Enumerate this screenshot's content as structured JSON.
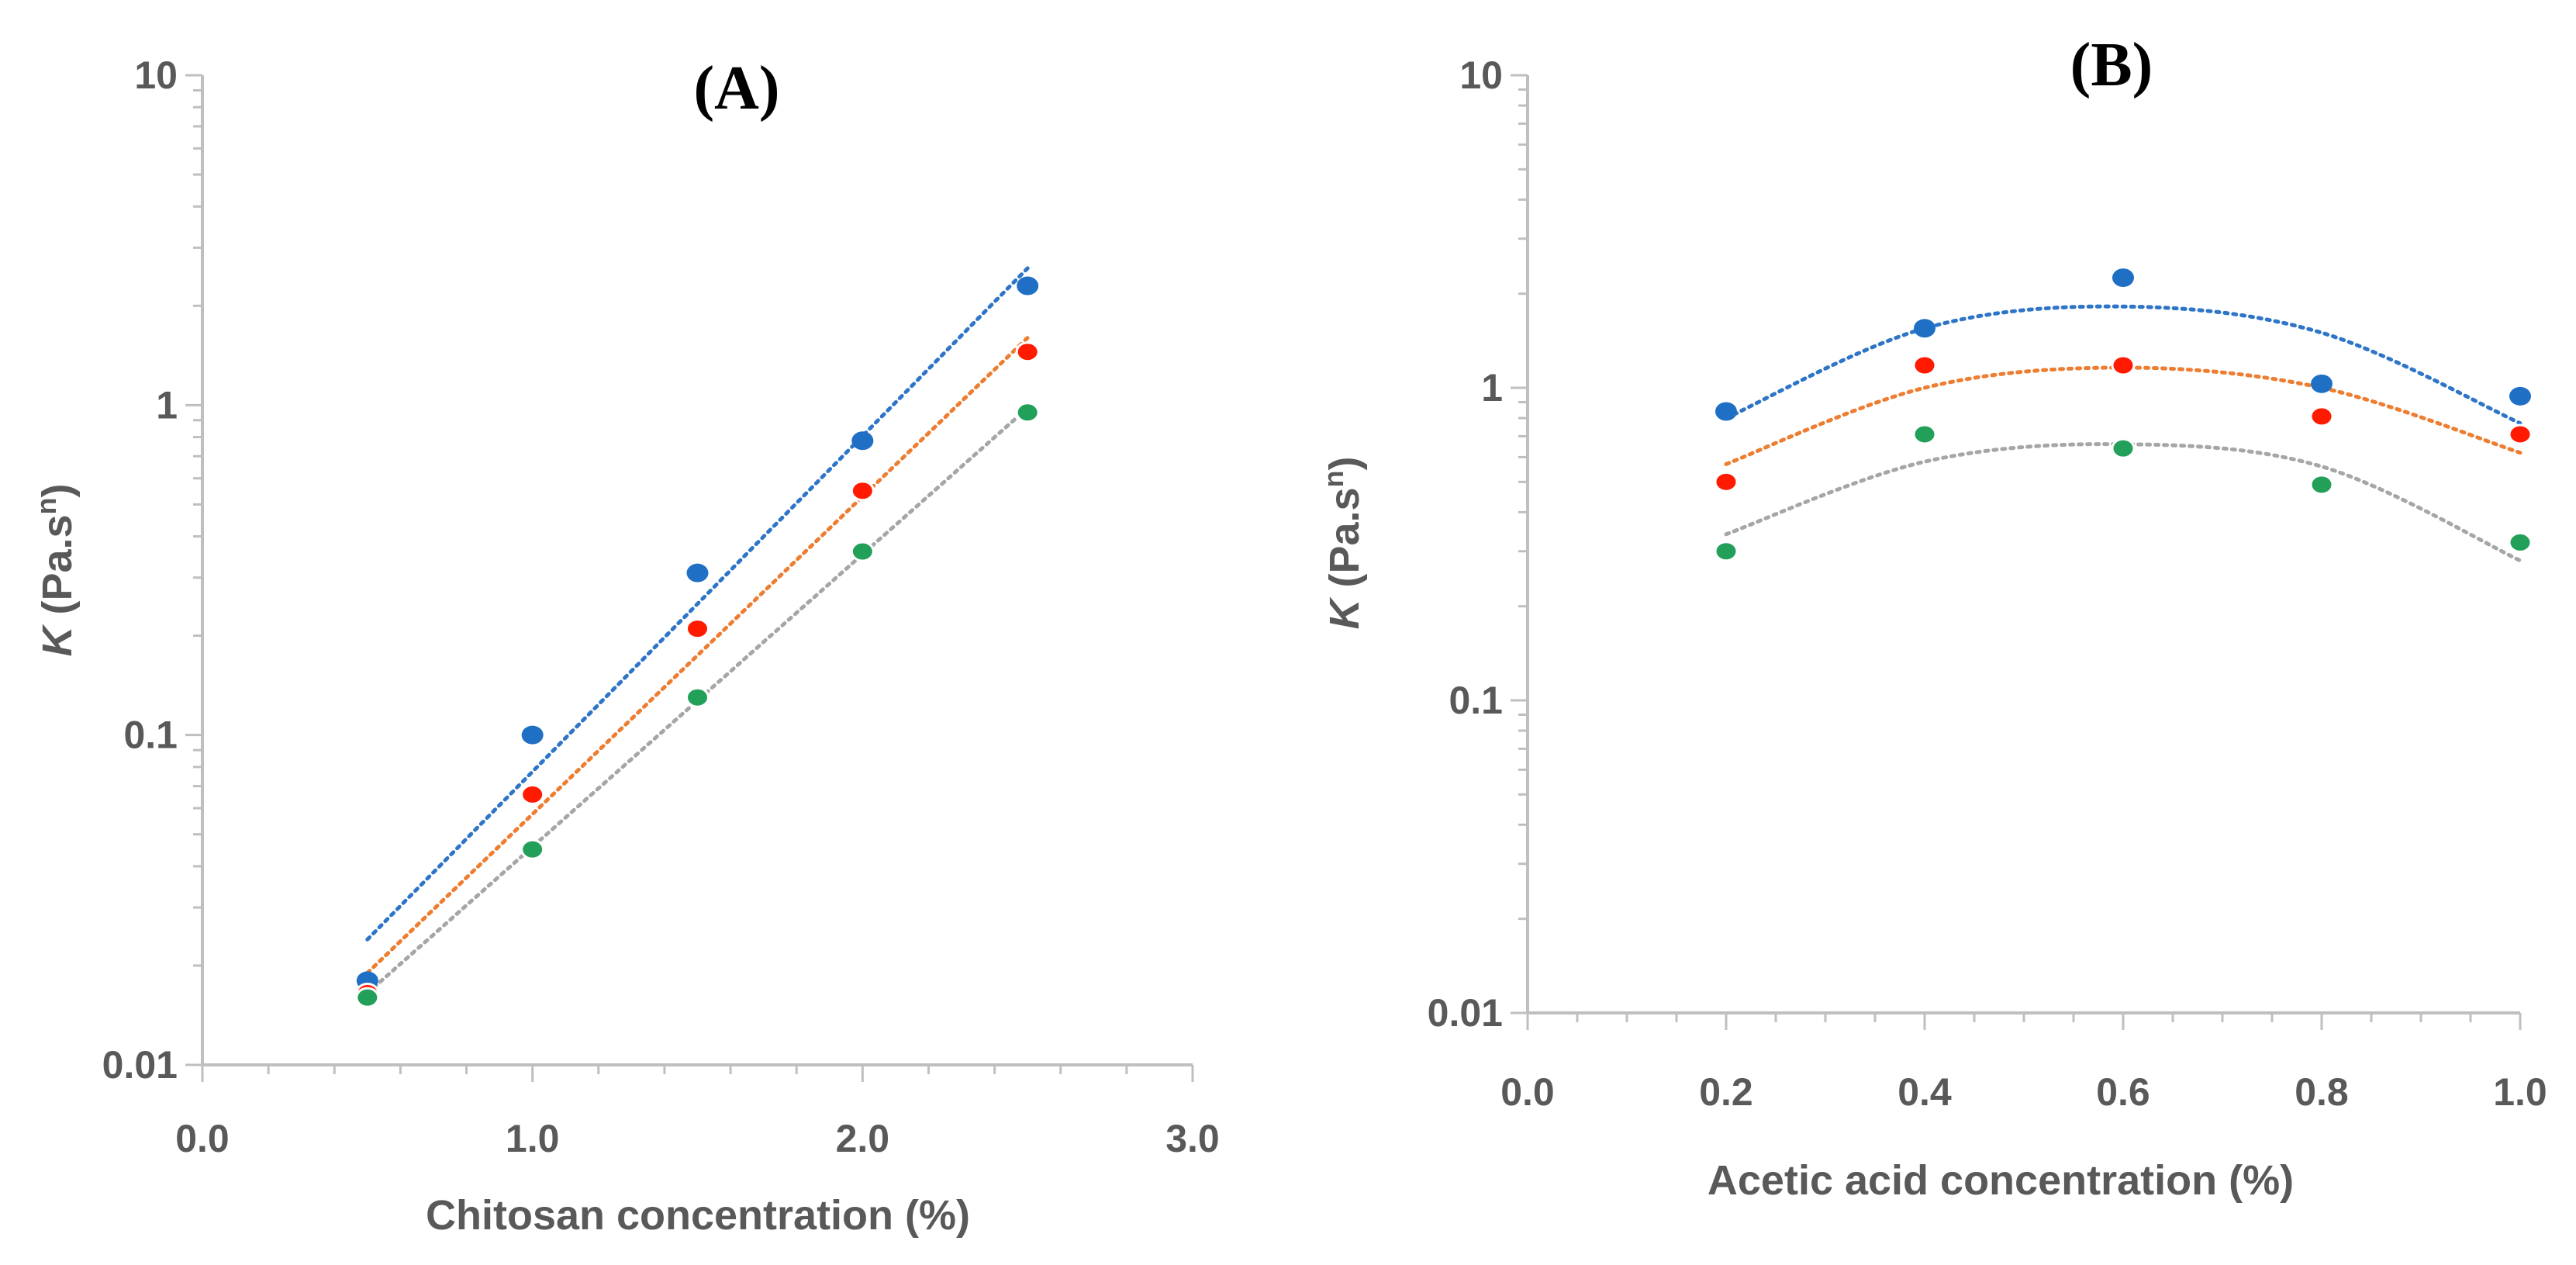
{
  "colors": {
    "series_blue": "#1f6fc4",
    "series_red": "#ff1a00",
    "series_green": "#22a05a",
    "trend_blue": "#2e75c8",
    "trend_orange": "#ed7d31",
    "trend_gray": "#a6a6a6",
    "axis": "#bfbfbf",
    "text": "#595959"
  },
  "chart_data": [
    {
      "type": "scatter",
      "panel_label": "(A)",
      "xlabel": "Chitosan concentration (%)",
      "ylabel_main": "K",
      "ylabel_rest": " (Pa.s",
      "ylabel_sup": "n",
      "ylabel_close": ")",
      "xscale": "linear",
      "yscale": "log",
      "xlim": [
        0.0,
        3.0
      ],
      "ylim": [
        0.01,
        10
      ],
      "x_ticks": [
        0.0,
        1.0,
        2.0,
        3.0
      ],
      "x_tick_labels": [
        "0.0",
        "1.0",
        "2.0",
        "3.0"
      ],
      "y_ticks": [
        0.01,
        0.1,
        1,
        10
      ],
      "y_tick_labels": [
        "0.01",
        "0.1",
        "1",
        "10"
      ],
      "series": [
        {
          "color": "blue",
          "x": [
            0.5,
            1.0,
            1.5,
            2.0,
            2.5
          ],
          "y": [
            0.018,
            0.1,
            0.31,
            0.78,
            2.3
          ],
          "trendline": {
            "type": "exponential",
            "x": [
              0.5,
              2.5
            ],
            "y": [
              0.024,
              2.6
            ]
          }
        },
        {
          "color": "red",
          "x": [
            0.5,
            1.0,
            1.5,
            2.0,
            2.5
          ],
          "y": [
            0.0165,
            0.066,
            0.21,
            0.55,
            1.45
          ],
          "trendline": {
            "type": "exponential",
            "x": [
              0.5,
              2.5
            ],
            "y": [
              0.019,
              1.6
            ]
          }
        },
        {
          "color": "green",
          "x": [
            0.5,
            1.0,
            1.5,
            2.0,
            2.5
          ],
          "y": [
            0.016,
            0.045,
            0.13,
            0.36,
            0.95
          ],
          "trendline": {
            "type": "exponential",
            "x": [
              0.5,
              2.5
            ],
            "y": [
              0.0165,
              0.98
            ]
          }
        }
      ]
    },
    {
      "type": "scatter",
      "panel_label": "(B)",
      "xlabel": "Acetic acid concentration (%)",
      "ylabel_main": "K",
      "ylabel_rest": " (Pa.s",
      "ylabel_sup": "n",
      "ylabel_close": ")",
      "xscale": "linear",
      "yscale": "log",
      "xlim": [
        0.0,
        1.0
      ],
      "ylim": [
        0.01,
        10
      ],
      "x_ticks": [
        0.0,
        0.2,
        0.4,
        0.6,
        0.8,
        1.0
      ],
      "x_tick_labels": [
        "0.0",
        "0.2",
        "0.4",
        "0.6",
        "0.8",
        "1.0"
      ],
      "y_ticks": [
        0.01,
        0.1,
        1,
        10
      ],
      "y_tick_labels": [
        "0.01",
        "0.1",
        "1",
        "10"
      ],
      "series": [
        {
          "color": "blue",
          "x": [
            0.2,
            0.4,
            0.6,
            0.8,
            1.0
          ],
          "y": [
            0.84,
            1.55,
            2.25,
            1.03,
            0.94
          ],
          "trendline": {
            "type": "polynomial",
            "x": [
              0.2,
              0.4,
              0.6,
              0.8,
              1.0
            ],
            "y": [
              0.8,
              1.55,
              1.82,
              1.5,
              0.77
            ]
          }
        },
        {
          "color": "red",
          "x": [
            0.2,
            0.4,
            0.6,
            0.8,
            1.0
          ],
          "y": [
            0.5,
            1.18,
            1.18,
            0.81,
            0.71
          ],
          "trendline": {
            "type": "polynomial",
            "x": [
              0.2,
              0.4,
              0.6,
              0.8,
              1.0
            ],
            "y": [
              0.57,
              1.0,
              1.16,
              1.0,
              0.62
            ]
          }
        },
        {
          "color": "green",
          "x": [
            0.2,
            0.4,
            0.6,
            0.8,
            1.0
          ],
          "y": [
            0.3,
            0.71,
            0.64,
            0.49,
            0.32
          ],
          "trendline": {
            "type": "polynomial",
            "x": [
              0.2,
              0.4,
              0.6,
              0.8,
              1.0
            ],
            "y": [
              0.34,
              0.58,
              0.66,
              0.56,
              0.28
            ]
          }
        }
      ]
    }
  ]
}
